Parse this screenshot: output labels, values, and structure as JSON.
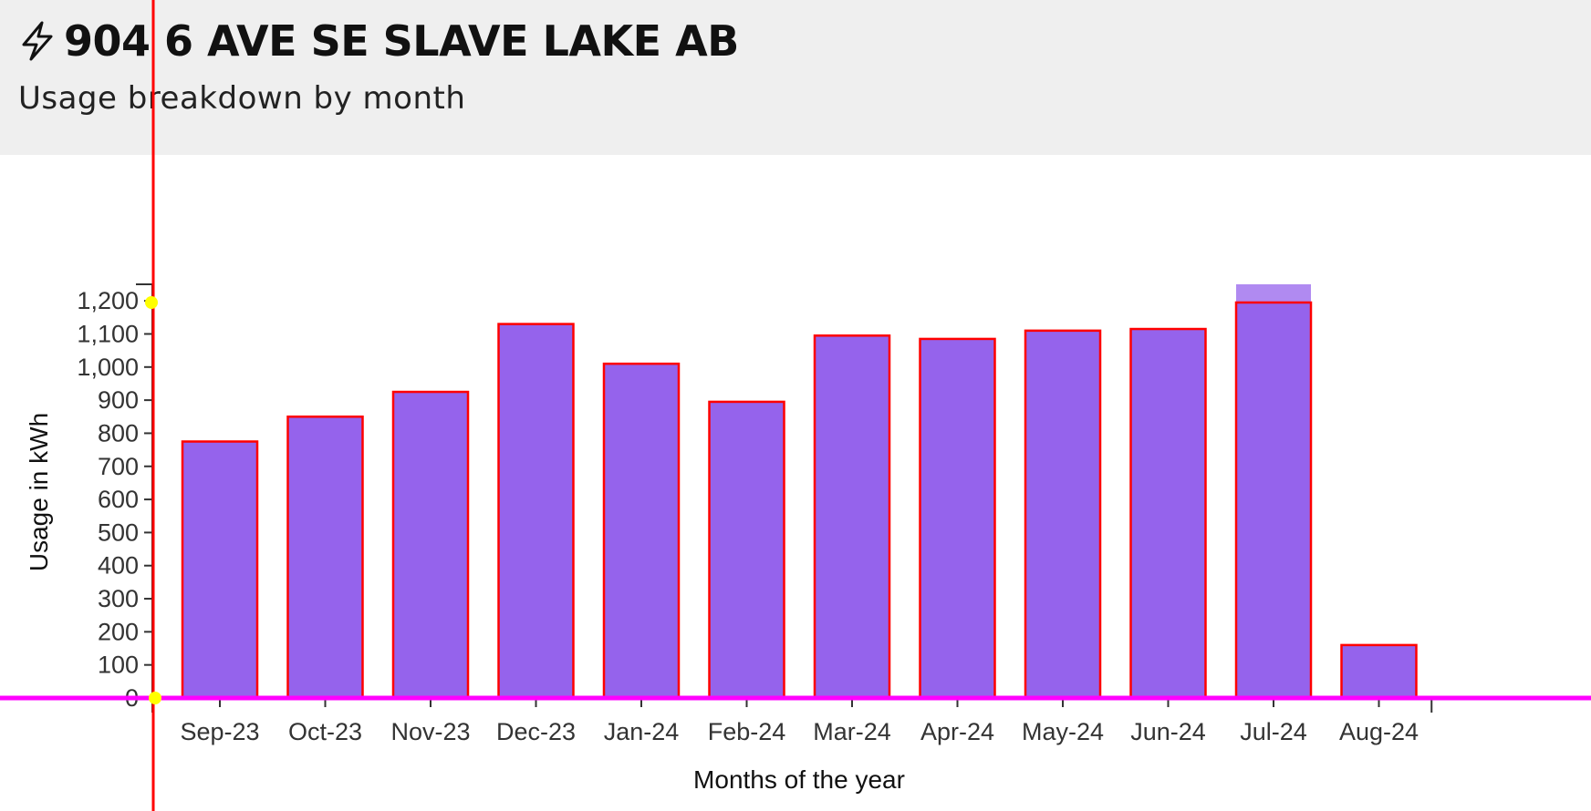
{
  "header": {
    "icon": "lightning-bolt-icon",
    "title": "904 6 AVE SE SLAVE LAKE AB",
    "subtitle": "Usage breakdown by month"
  },
  "colors": {
    "header_bg": "#efefef",
    "bar_fill": "#9563ec",
    "bar_stroke": "#ff0000",
    "guide_vertical": "#ff0000",
    "guide_horizontal": "#ff00ff",
    "marker": "#ffff00"
  },
  "chart_data": {
    "type": "bar",
    "categories": [
      "Sep-23",
      "Oct-23",
      "Nov-23",
      "Dec-23",
      "Jan-24",
      "Feb-24",
      "Mar-24",
      "Apr-24",
      "May-24",
      "Jun-24",
      "Jul-24",
      "Aug-24"
    ],
    "values": [
      775,
      850,
      925,
      1130,
      1010,
      895,
      1095,
      1085,
      1110,
      1115,
      1195,
      160
    ],
    "highlight": {
      "category": "Jul-24",
      "value": 1250
    },
    "xlabel": "Months of the year",
    "ylabel": "Usage in kWh",
    "yticks": [
      0,
      100,
      200,
      300,
      400,
      500,
      600,
      700,
      800,
      900,
      1000,
      1100,
      1200
    ],
    "ytick_labels": [
      "0",
      "100",
      "200",
      "300",
      "400",
      "500",
      "600",
      "700",
      "800",
      "900",
      "1,000",
      "1,100",
      "1,200"
    ],
    "ylim": [
      0,
      1250
    ],
    "grid": false
  }
}
